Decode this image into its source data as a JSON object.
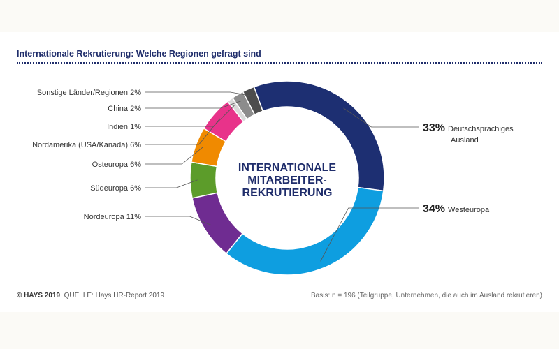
{
  "title": "Internationale Rekrutierung:  Welche Regionen gefragt sind",
  "footer": {
    "copyright": "© HAYS 2019",
    "source": "QUELLE: Hays HR-Report 2019",
    "basis": "Basis: n = 196 (Teilgruppe, Unternehmen, die auch im Ausland rekrutieren)"
  },
  "chart_data": {
    "type": "pie",
    "center_label": [
      "INTERNATIONALE",
      "MITARBEITER-",
      "REKRUTIERUNG"
    ],
    "unit": "%",
    "slices": [
      {
        "label": "Deutschsprachiges Ausland",
        "value": 33,
        "color": "#1d2f72"
      },
      {
        "label": "Westeuropa",
        "value": 34,
        "color": "#0e9ee0"
      },
      {
        "label": "Nordeuropa",
        "value": 11,
        "color": "#6f2c91"
      },
      {
        "label": "Südeuropa",
        "value": 6,
        "color": "#5c9c2a"
      },
      {
        "label": "Osteuropa",
        "value": 6,
        "color": "#f08a00"
      },
      {
        "label": "Nordamerika (USA/Kanada)",
        "value": 6,
        "color": "#e8338a"
      },
      {
        "label": "Indien",
        "value": 1,
        "color": "#d9d9d9"
      },
      {
        "label": "China",
        "value": 2,
        "color": "#8c8c8c"
      },
      {
        "label": "Sonstige Länder/Regionen",
        "value": 2,
        "color": "#4d4d4d"
      }
    ]
  }
}
